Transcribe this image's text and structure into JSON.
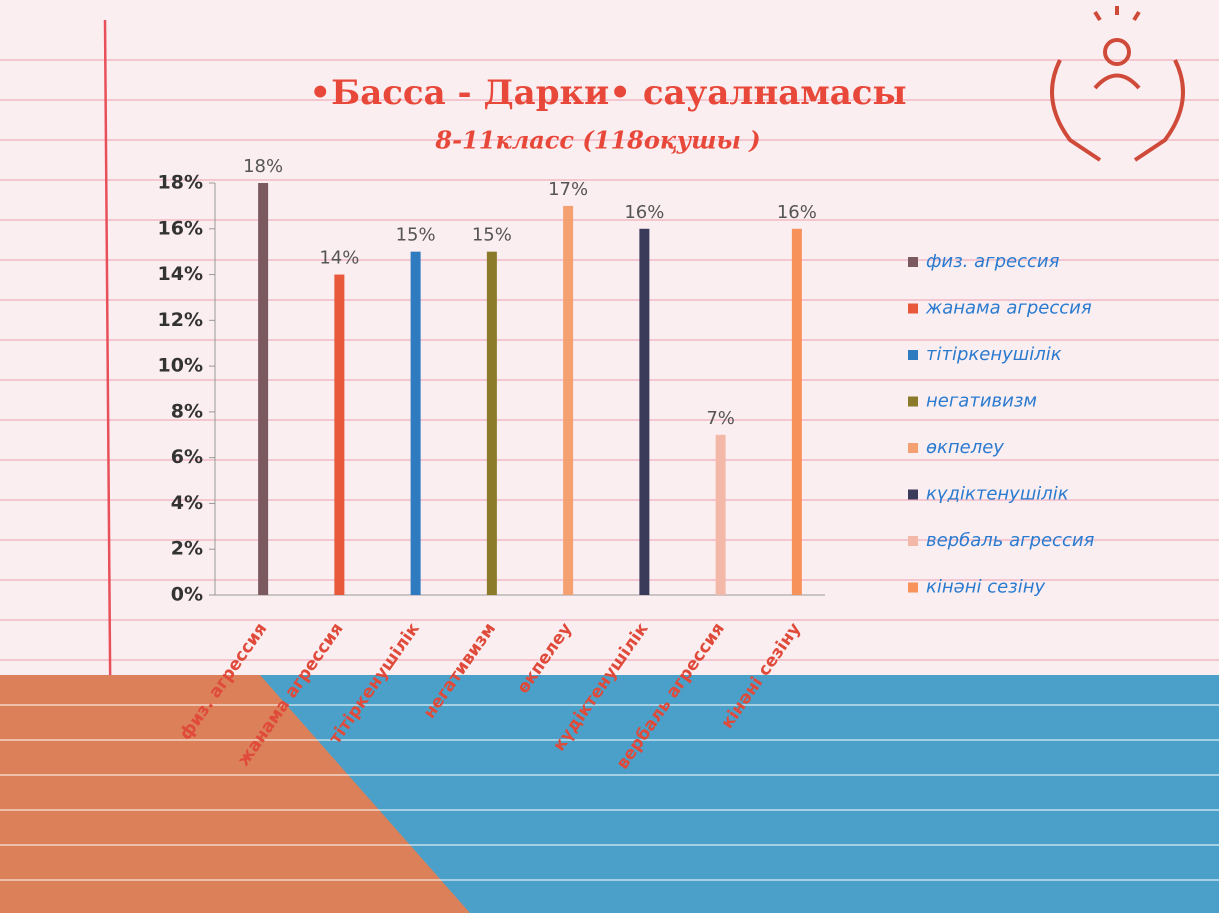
{
  "chart_data": {
    "type": "bar",
    "title": "•Басса - Дарки• сауалнамасы",
    "subtitle": "8-11класс (118оқушы )",
    "categories": [
      "физ. агрессия",
      "жанама агрессия",
      "тітіркенушілік",
      "негативизм",
      "өкпелеу",
      "күдіктенушілік",
      "вербаль агрессия",
      "кінәні сезіну"
    ],
    "values": [
      18,
      14,
      15,
      15,
      17,
      16,
      7,
      16
    ],
    "value_labels": [
      "18%",
      "14%",
      "15%",
      "15%",
      "17%",
      "16%",
      "7%",
      "16%"
    ],
    "colors": [
      "#7a5a5e",
      "#e8583a",
      "#2e7bbf",
      "#8a7a2a",
      "#f4a070",
      "#3a3a5a",
      "#f4b8a8",
      "#f7935a"
    ],
    "ylim": [
      0,
      18
    ],
    "yticks": [
      {
        "value": 0,
        "label": "0%"
      },
      {
        "value": 2,
        "label": "2%"
      },
      {
        "value": 4,
        "label": "4%"
      },
      {
        "value": 6,
        "label": "6%"
      },
      {
        "value": 8,
        "label": "8%"
      },
      {
        "value": 10,
        "label": "10%"
      },
      {
        "value": 12,
        "label": "12%"
      },
      {
        "value": 14,
        "label": "14%"
      },
      {
        "value": 16,
        "label": "16%"
      },
      {
        "value": 18,
        "label": "18%"
      }
    ],
    "legend": "right"
  }
}
